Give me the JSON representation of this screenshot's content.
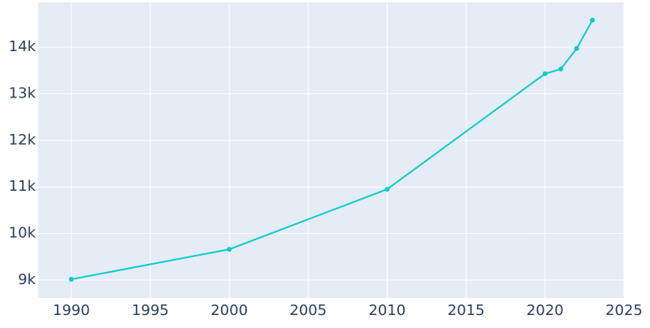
{
  "chart_data": {
    "type": "line",
    "x": [
      1990,
      2000,
      2010,
      2020,
      2021,
      2022,
      2023
    ],
    "series": [
      {
        "color": "#0bcdcd",
        "values": [
          9017,
          9660,
          10950,
          13430,
          13530,
          13970,
          14580
        ]
      }
    ],
    "xlim": [
      1987.9,
      2025
    ],
    "xticks": [
      1990,
      1995,
      2000,
      2005,
      2010,
      2015,
      2020,
      2025
    ],
    "ylim": [
      8616,
      14960
    ],
    "yticks": [
      {
        "value": 9000,
        "label": "9k"
      },
      {
        "value": 10000,
        "label": "10k"
      },
      {
        "value": 11000,
        "label": "11k"
      },
      {
        "value": 12000,
        "label": "12k"
      },
      {
        "value": 13000,
        "label": "13k"
      },
      {
        "value": 14000,
        "label": "14k"
      }
    ],
    "grid": true,
    "background": "#e5ecf6"
  }
}
